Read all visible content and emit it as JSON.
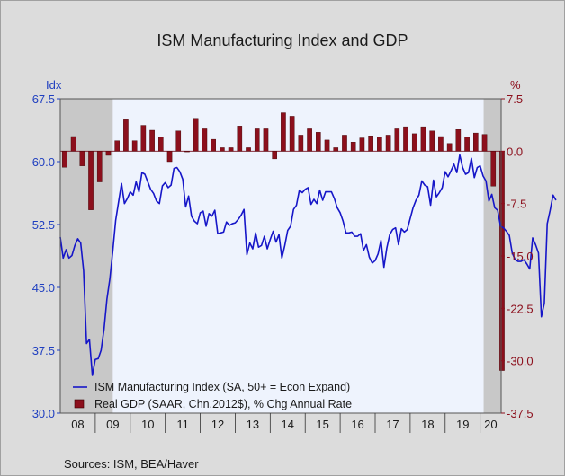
{
  "chart_data": {
    "type": "line",
    "title": "ISM Manufacturing Index and GDP",
    "left_axis": {
      "unit_label": "Idx",
      "ticks": [
        "67.5",
        "60.0",
        "52.5",
        "45.0",
        "37.5",
        "30.0"
      ],
      "range": [
        30,
        67.5
      ],
      "color": "#1f3fc0"
    },
    "right_axis": {
      "unit_label": "%",
      "ticks": [
        "7.5",
        "0.0",
        "-7.5",
        "-15.0",
        "-22.5",
        "-30.0",
        "-37.5"
      ],
      "range": [
        -37.5,
        7.5
      ],
      "color": "#8c0f1c"
    },
    "x_axis": {
      "labels": [
        "08",
        "09",
        "10",
        "11",
        "12",
        "13",
        "14",
        "15",
        "16",
        "17",
        "18",
        "19",
        "20"
      ],
      "range_years": [
        2008.0,
        2020.6
      ]
    },
    "recessions": [
      {
        "start": 2008.0,
        "end": 2009.5
      },
      {
        "start": 2020.1,
        "end": 2020.6
      }
    ],
    "grid": false,
    "legend_position": "bottom-left",
    "plot_bg": "#eef3fd",
    "recession_color": "#c8c8c8",
    "series": [
      {
        "name": "ISM Manufacturing Index (SA, 50+ = Econ Expand)",
        "kind": "line",
        "axis": "left",
        "color": "#1616c8",
        "start": 2008.0,
        "step": 0.0833333,
        "values": [
          51.0,
          48.5,
          49.5,
          48.5,
          48.8,
          50.0,
          50.8,
          50.3,
          47.0,
          38.3,
          38.8,
          34.5,
          36.4,
          36.5,
          37.5,
          40.0,
          43.6,
          46.0,
          49.3,
          53.0,
          55.2,
          57.4,
          55.0,
          55.6,
          56.4,
          56.0,
          57.6,
          56.4,
          58.7,
          58.5,
          57.6,
          56.7,
          56.2,
          55.3,
          55.0,
          57.1,
          57.5,
          56.9,
          57.2,
          59.2,
          59.3,
          58.8,
          57.9,
          54.6,
          55.9,
          53.5,
          52.9,
          52.6,
          53.9,
          54.1,
          52.3,
          53.8,
          53.5,
          54.2,
          51.4,
          51.5,
          51.6,
          52.8,
          52.4,
          52.6,
          52.7,
          53.1,
          53.6,
          54.3,
          48.9,
          50.3,
          49.6,
          51.5,
          49.8,
          50.0,
          51.1,
          49.6,
          50.7,
          51.7,
          50.4,
          51.3,
          48.5,
          50.0,
          51.8,
          52.3,
          54.3,
          54.8,
          56.6,
          56.3,
          56.7,
          56.9,
          54.9,
          55.5,
          55.0,
          56.6,
          55.4,
          56.4,
          56.4,
          56.4,
          55.6,
          54.5,
          53.9,
          52.9,
          51.5,
          51.5,
          51.6,
          51.1,
          51.1,
          51.4,
          49.4,
          50.1,
          48.6,
          47.9,
          48.2,
          49.0,
          50.6,
          47.4,
          49.7,
          51.3,
          51.9,
          52.1,
          50.1,
          52.0,
          51.6,
          51.9,
          53.2,
          54.5,
          55.4,
          56.0,
          57.7,
          57.2,
          57.0,
          54.8,
          57.8,
          55.8,
          56.3,
          56.9,
          58.8,
          58.2,
          58.9,
          59.7,
          58.7,
          60.8,
          59.3,
          58.5,
          58.7,
          60.4,
          58.1,
          59.3,
          59.5,
          58.3,
          57.7,
          55.3,
          56.1,
          54.5,
          54.2,
          52.3,
          52.1,
          51.7,
          51.2,
          49.1,
          48.3,
          48.1,
          48.1,
          48.3,
          47.8,
          47.2,
          50.9,
          50.1,
          49.1,
          41.5,
          43.1,
          52.6,
          54.2,
          56.0,
          55.4
        ]
      },
      {
        "name": "Real GDP (SAAR, Chn.2012$), % Chg Annual Rate",
        "kind": "bar",
        "axis": "right",
        "color": "#8c0f1c",
        "start": 2008.125,
        "step": 0.25,
        "values": [
          -2.3,
          2.1,
          -2.1,
          -8.4,
          -4.4,
          -0.6,
          1.5,
          4.5,
          1.5,
          3.7,
          3.0,
          2.0,
          -1.5,
          2.9,
          -0.1,
          4.7,
          3.2,
          1.7,
          0.5,
          0.5,
          3.6,
          0.5,
          3.2,
          3.2,
          -1.1,
          5.5,
          5.0,
          2.3,
          3.2,
          2.7,
          1.6,
          0.5,
          2.3,
          1.3,
          1.9,
          2.2,
          2.0,
          2.3,
          3.2,
          3.5,
          2.5,
          3.5,
          2.9,
          2.1,
          1.1,
          3.1,
          2.0,
          2.6,
          2.4,
          -5.0,
          -31.4
        ]
      }
    ]
  },
  "sources": "Sources:  ISM, BEA/Haver"
}
